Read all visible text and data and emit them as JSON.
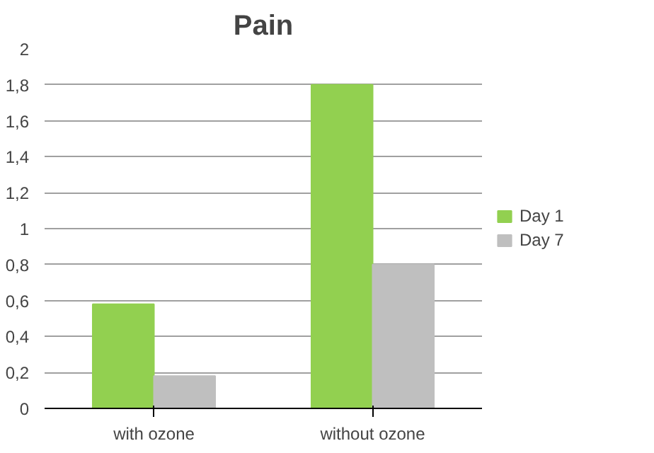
{
  "chart_data": {
    "type": "bar",
    "title": "Pain",
    "categories": [
      "with ozone",
      "without ozone"
    ],
    "series": [
      {
        "name": "Day 1",
        "color": "#92d050",
        "values": [
          0.58,
          1.8
        ]
      },
      {
        "name": "Day 7",
        "color": "#bfbfbf",
        "values": [
          0.18,
          0.8
        ]
      }
    ],
    "ylim": [
      0,
      2
    ],
    "yticks": [
      0,
      {
        "value": 0.2,
        "label": "0,2"
      },
      {
        "value": 0.4,
        "label": "0,4"
      },
      {
        "value": 0.6,
        "label": "0,6"
      },
      {
        "value": 0.8,
        "label": "0,8"
      },
      1,
      {
        "value": 1.2,
        "label": "1,2"
      },
      {
        "value": 1.4,
        "label": "1,4"
      },
      {
        "value": 1.6,
        "label": "1,6"
      },
      {
        "value": 1.8,
        "label": "1,8"
      },
      2
    ],
    "grid": "y",
    "legend": "right"
  }
}
